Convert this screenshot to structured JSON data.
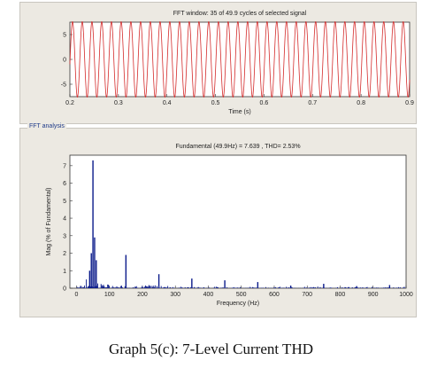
{
  "caption": "Graph 5(c): 7-Level Current THD",
  "colors": {
    "signal": "#d42a2a",
    "bars": "#0a1a8a",
    "panel": "#ece9e2"
  },
  "chart_data": [
    {
      "type": "line",
      "title": "FFT window: 35 of 49.9 cycles of selected signal",
      "xlabel": "Time (s)",
      "ylabel": "",
      "xlim": [
        0.2,
        0.9
      ],
      "ylim": [
        -7.5,
        7.5
      ],
      "xticks": [
        "0.2",
        "0.3",
        "0.4",
        "0.5",
        "0.6",
        "0.7",
        "0.8",
        "0.9"
      ],
      "yticks": [
        "5",
        "0",
        "-5"
      ],
      "ytick_values": [
        5,
        0,
        -5
      ],
      "series": [
        {
          "frequency_hz": 49.9,
          "amplitude": 7.6,
          "start": 0.2,
          "end": 0.9
        }
      ]
    },
    {
      "type": "bar",
      "panel_label": "FFT analysis",
      "title": "Fundamental (49.9Hz) = 7.639 , THD= 2.53%",
      "xlabel": "Frequency (Hz)",
      "ylabel": "Mag (% of Fundamental)",
      "xlim": [
        -20,
        1000
      ],
      "ylim": [
        0,
        7.6
      ],
      "xticks": [
        "0",
        "100",
        "200",
        "300",
        "400",
        "500",
        "600",
        "700",
        "800",
        "900",
        "1000"
      ],
      "yticks": [
        "7",
        "6",
        "5",
        "4",
        "3",
        "2",
        "1",
        "0"
      ],
      "ytick_values": [
        7,
        6,
        5,
        4,
        3,
        2,
        1,
        0
      ],
      "peaks": [
        {
          "x": 50,
          "y": 7.3
        },
        {
          "x": 55,
          "y": 2.9
        },
        {
          "x": 45,
          "y": 2.0
        },
        {
          "x": 60,
          "y": 1.6
        },
        {
          "x": 40,
          "y": 1.0
        },
        {
          "x": 150,
          "y": 1.9
        },
        {
          "x": 250,
          "y": 0.8
        },
        {
          "x": 350,
          "y": 0.55
        },
        {
          "x": 450,
          "y": 0.45
        },
        {
          "x": 550,
          "y": 0.35
        },
        {
          "x": 650,
          "y": 0.15
        },
        {
          "x": 750,
          "y": 0.25
        },
        {
          "x": 850,
          "y": 0.12
        },
        {
          "x": 950,
          "y": 0.18
        }
      ]
    }
  ]
}
